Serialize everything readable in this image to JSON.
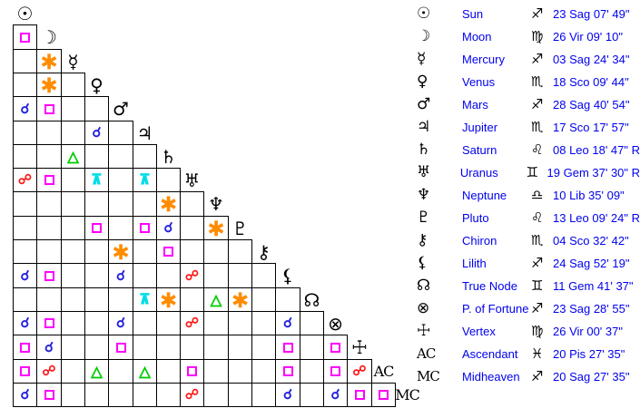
{
  "app": {
    "description": "Natal chart aspectarian with planetary positions table"
  },
  "palette": {
    "background": "#ffffff",
    "grid_line": "#000000",
    "glyph_black": "#000000",
    "legend_text_blue": "#0000ee"
  },
  "aspect_types": {
    "conjunction": {
      "symbol": "☌",
      "color": "#2222dd"
    },
    "opposition": {
      "symbol": "☍",
      "color": "#ff1a1a"
    },
    "square": {
      "symbol": "□",
      "color": "#ff00ff"
    },
    "trine": {
      "symbol": "△",
      "color": "#00cc00"
    },
    "sextile": {
      "symbol": "∗",
      "color": "#ff8c00"
    },
    "quincunx": {
      "symbol": "⊼",
      "color": "#00dde8"
    }
  },
  "points": [
    {
      "id": "sun",
      "name": "Sun",
      "glyph": "☉",
      "glyph_style": "symbol",
      "sign_glyph": "♐",
      "position": "23 Sag 07' 49\"",
      "aspects": []
    },
    {
      "id": "moon",
      "name": "Moon",
      "glyph": "☽",
      "glyph_style": "symbol",
      "sign_glyph": "♍",
      "position": "26 Vir 09' 10\"",
      "aspects": [
        {
          "with": "sun",
          "type": "square"
        }
      ]
    },
    {
      "id": "mercury",
      "name": "Mercury",
      "glyph": "☿",
      "glyph_style": "symbol",
      "sign_glyph": "♐",
      "position": "03 Sag 24' 34\"",
      "aspects": [
        {
          "with": "moon",
          "type": "sextile"
        }
      ]
    },
    {
      "id": "venus",
      "name": "Venus",
      "glyph": "♀",
      "glyph_style": "symbol",
      "sign_glyph": "♏",
      "position": "18 Sco 09' 44\"",
      "aspects": [
        {
          "with": "moon",
          "type": "sextile"
        }
      ]
    },
    {
      "id": "mars",
      "name": "Mars",
      "glyph": "♂",
      "glyph_style": "symbol",
      "sign_glyph": "♐",
      "position": "28 Sag 40' 54\"",
      "aspects": [
        {
          "with": "sun",
          "type": "conjunction"
        },
        {
          "with": "moon",
          "type": "square"
        }
      ]
    },
    {
      "id": "jupiter",
      "name": "Jupiter",
      "glyph": "♃",
      "glyph_style": "symbol",
      "sign_glyph": "♏",
      "position": "17 Sco 17' 57\"",
      "aspects": [
        {
          "with": "venus",
          "type": "conjunction"
        }
      ]
    },
    {
      "id": "saturn",
      "name": "Saturn",
      "glyph": "♄",
      "glyph_style": "symbol",
      "sign_glyph": "♌",
      "position": "08 Leo 18' 47\" R",
      "aspects": [
        {
          "with": "mercury",
          "type": "trine"
        }
      ]
    },
    {
      "id": "uranus",
      "name": "Uranus",
      "glyph": "♅",
      "glyph_style": "symbol",
      "sign_glyph": "♊",
      "position": "19 Gem 37' 30\" R",
      "aspects": [
        {
          "with": "sun",
          "type": "opposition"
        },
        {
          "with": "moon",
          "type": "square"
        },
        {
          "with": "venus",
          "type": "quincunx"
        },
        {
          "with": "jupiter",
          "type": "quincunx"
        }
      ]
    },
    {
      "id": "neptune",
      "name": "Neptune",
      "glyph": "♆",
      "glyph_style": "symbol",
      "sign_glyph": "♎",
      "position": "10 Lib 35' 09\"",
      "aspects": [
        {
          "with": "saturn",
          "type": "sextile"
        }
      ]
    },
    {
      "id": "pluto",
      "name": "Pluto",
      "glyph": "♇",
      "glyph_style": "symbol",
      "sign_glyph": "♌",
      "position": "13 Leo 09' 24\" R",
      "aspects": [
        {
          "with": "venus",
          "type": "square"
        },
        {
          "with": "jupiter",
          "type": "square"
        },
        {
          "with": "saturn",
          "type": "conjunction"
        },
        {
          "with": "neptune",
          "type": "sextile"
        }
      ]
    },
    {
      "id": "chiron",
      "name": "Chiron",
      "glyph": "⚷",
      "glyph_style": "symbol",
      "sign_glyph": "♏",
      "position": "04 Sco 32' 42\"",
      "aspects": [
        {
          "with": "mars",
          "type": "sextile"
        },
        {
          "with": "saturn",
          "type": "square"
        }
      ]
    },
    {
      "id": "lilith",
      "name": "Lilith",
      "glyph": "⚸",
      "glyph_style": "symbol",
      "sign_glyph": "♐",
      "position": "24 Sag 52' 19\"",
      "aspects": [
        {
          "with": "sun",
          "type": "conjunction"
        },
        {
          "with": "moon",
          "type": "square"
        },
        {
          "with": "mars",
          "type": "conjunction"
        },
        {
          "with": "uranus",
          "type": "opposition"
        }
      ]
    },
    {
      "id": "true-node",
      "name": "True Node",
      "glyph": "☊",
      "glyph_style": "symbol",
      "sign_glyph": "♊",
      "position": "11 Gem 41' 37\"",
      "aspects": [
        {
          "with": "jupiter",
          "type": "quincunx"
        },
        {
          "with": "saturn",
          "type": "sextile"
        },
        {
          "with": "neptune",
          "type": "trine"
        },
        {
          "with": "pluto",
          "type": "sextile"
        }
      ]
    },
    {
      "id": "p-of-fortune",
      "name": "P. of Fortune",
      "glyph": "⊗",
      "glyph_style": "symbol",
      "sign_glyph": "♐",
      "position": "23 Sag 28' 55\"",
      "aspects": [
        {
          "with": "sun",
          "type": "conjunction"
        },
        {
          "with": "moon",
          "type": "square"
        },
        {
          "with": "mars",
          "type": "conjunction"
        },
        {
          "with": "uranus",
          "type": "opposition"
        },
        {
          "with": "lilith",
          "type": "conjunction"
        }
      ]
    },
    {
      "id": "vertex",
      "name": "Vertex",
      "glyph": "☩",
      "glyph_style": "symbol",
      "sign_glyph": "♍",
      "position": "26 Vir 00' 37\"",
      "aspects": [
        {
          "with": "sun",
          "type": "square"
        },
        {
          "with": "moon",
          "type": "conjunction"
        },
        {
          "with": "mars",
          "type": "square"
        },
        {
          "with": "lilith",
          "type": "square"
        },
        {
          "with": "p-of-fortune",
          "type": "square"
        }
      ]
    },
    {
      "id": "ascendant",
      "name": "Ascendant",
      "glyph": "AC",
      "glyph_style": "text",
      "sign_glyph": "♓",
      "position": "20 Pis 27' 35\"",
      "aspects": [
        {
          "with": "sun",
          "type": "square"
        },
        {
          "with": "moon",
          "type": "opposition"
        },
        {
          "with": "venus",
          "type": "trine"
        },
        {
          "with": "jupiter",
          "type": "trine"
        },
        {
          "with": "uranus",
          "type": "square"
        },
        {
          "with": "lilith",
          "type": "square"
        },
        {
          "with": "p-of-fortune",
          "type": "square"
        },
        {
          "with": "vertex",
          "type": "opposition"
        }
      ]
    },
    {
      "id": "midheaven",
      "name": "Midheaven",
      "glyph": "MC",
      "glyph_style": "text",
      "sign_glyph": "♐",
      "position": "20 Sag 27' 35\"",
      "aspects": [
        {
          "with": "sun",
          "type": "conjunction"
        },
        {
          "with": "moon",
          "type": "square"
        },
        {
          "with": "uranus",
          "type": "opposition"
        },
        {
          "with": "lilith",
          "type": "conjunction"
        },
        {
          "with": "p-of-fortune",
          "type": "conjunction"
        },
        {
          "with": "vertex",
          "type": "square"
        },
        {
          "with": "ascendant",
          "type": "square"
        }
      ]
    }
  ]
}
